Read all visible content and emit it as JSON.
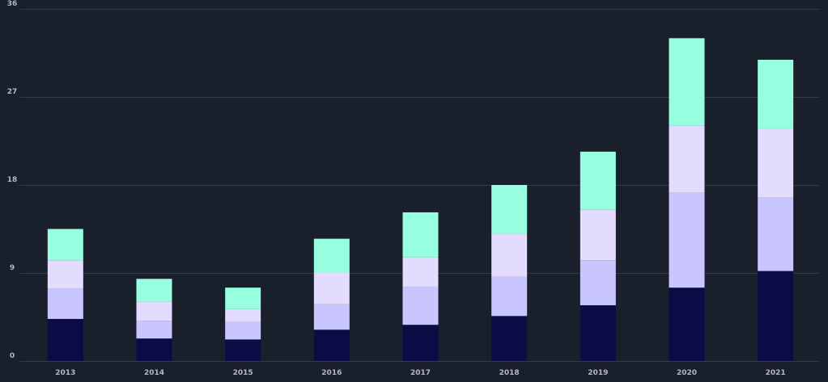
{
  "chart_data": {
    "type": "bar",
    "stacked": true,
    "categories": [
      "2013",
      "2014",
      "2015",
      "2016",
      "2017",
      "2018",
      "2019",
      "2020",
      "2021"
    ],
    "series": [
      {
        "color": "#0b0c45",
        "values": [
          4.3,
          2.3,
          2.2,
          3.2,
          3.7,
          4.6,
          5.7,
          7.5,
          9.2
        ]
      },
      {
        "color": "#c9c6ff",
        "values": [
          3.1,
          1.8,
          1.8,
          2.6,
          3.9,
          4.0,
          4.6,
          9.7,
          7.5
        ]
      },
      {
        "color": "#e4dcff",
        "values": [
          2.9,
          2.0,
          1.3,
          3.2,
          3.0,
          4.4,
          5.2,
          6.9,
          7.0
        ]
      },
      {
        "color": "#97ffdf",
        "values": [
          3.2,
          2.3,
          2.2,
          3.5,
          4.6,
          5.0,
          5.9,
          8.9,
          7.1
        ]
      }
    ],
    "yticks": [
      "0",
      "9",
      "18",
      "27",
      "36"
    ],
    "ylim": [
      0,
      36
    ],
    "grid": true,
    "legend": "none"
  }
}
